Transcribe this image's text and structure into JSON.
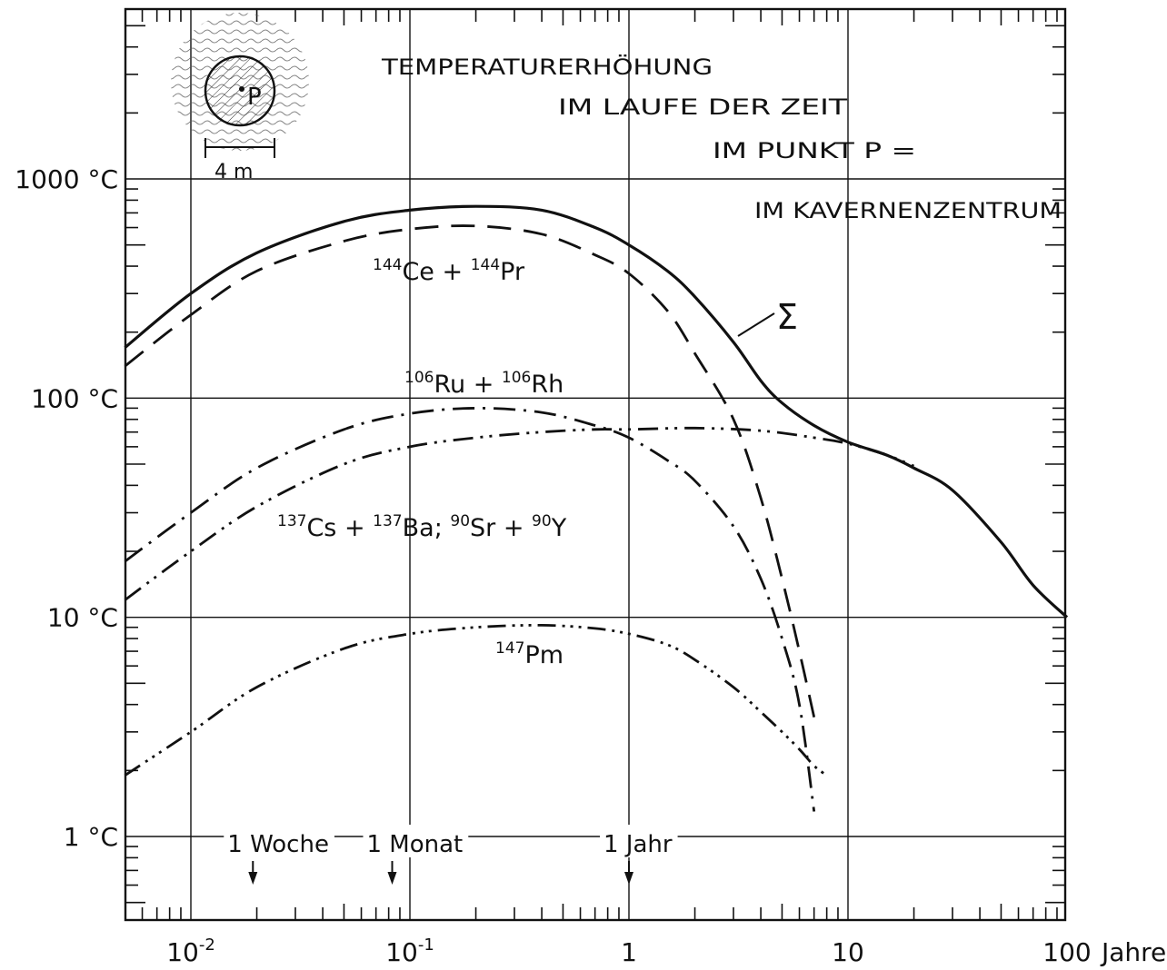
{
  "chart_data": {
    "type": "line",
    "title_lines": [
      "TEMPERATURERHÖHUNG",
      "IM LAUFE DER ZEIT",
      "IM PUNKT P =",
      "IM KAVERNENZENTRUM"
    ],
    "x_scale": "log",
    "y_scale": "log",
    "xlim": [
      0.005,
      100
    ],
    "ylim": [
      0.4,
      5000
    ],
    "x_ticks": [
      {
        "value": 0.01,
        "base": "10",
        "exp": "-2"
      },
      {
        "value": 0.1,
        "base": "10",
        "exp": "-1"
      },
      {
        "value": 1,
        "base": "1",
        "exp": ""
      },
      {
        "value": 10,
        "base": "10",
        "exp": ""
      },
      {
        "value": 100,
        "base": "100",
        "exp": ""
      }
    ],
    "x_unit": "Jahre",
    "y_ticks": [
      {
        "value": 1,
        "label": "1 °C"
      },
      {
        "value": 10,
        "label": "10 °C"
      },
      {
        "value": 100,
        "label": "100 °C"
      },
      {
        "value": 1000,
        "label": "1000 °C"
      }
    ],
    "markers": [
      {
        "x": 0.0192,
        "label": "1 Woche"
      },
      {
        "x": 0.083,
        "label": "1 Monat"
      },
      {
        "x": 1,
        "label": "1 Jahr"
      }
    ],
    "inset": {
      "point_label": "P",
      "dimension_label": "4 m"
    },
    "sum_label": "Σ",
    "series": [
      {
        "key": "sum",
        "style": "solid",
        "points": [
          [
            0.005,
            170
          ],
          [
            0.01,
            300
          ],
          [
            0.02,
            460
          ],
          [
            0.05,
            640
          ],
          [
            0.1,
            720
          ],
          [
            0.2,
            750
          ],
          [
            0.4,
            720
          ],
          [
            0.7,
            600
          ],
          [
            1,
            500
          ],
          [
            1.5,
            380
          ],
          [
            2,
            290
          ],
          [
            3,
            180
          ],
          [
            4,
            120
          ],
          [
            5,
            95
          ],
          [
            7,
            75
          ],
          [
            10,
            63
          ],
          [
            15,
            55
          ],
          [
            20,
            48
          ],
          [
            30,
            38
          ],
          [
            50,
            22
          ],
          [
            70,
            14
          ],
          [
            100,
            10
          ]
        ]
      },
      {
        "key": "ce_pr",
        "style": "dashed",
        "points": [
          [
            0.005,
            140
          ],
          [
            0.01,
            240
          ],
          [
            0.02,
            380
          ],
          [
            0.05,
            520
          ],
          [
            0.1,
            590
          ],
          [
            0.2,
            610
          ],
          [
            0.4,
            560
          ],
          [
            0.7,
            450
          ],
          [
            1,
            370
          ],
          [
            1.5,
            250
          ],
          [
            2,
            160
          ],
          [
            3,
            80
          ],
          [
            4,
            35
          ],
          [
            5,
            15
          ],
          [
            6,
            7
          ],
          [
            7,
            3.5
          ]
        ]
      },
      {
        "key": "ru_rh",
        "style": "dashdot",
        "points": [
          [
            0.005,
            18
          ],
          [
            0.01,
            30
          ],
          [
            0.02,
            48
          ],
          [
            0.05,
            72
          ],
          [
            0.1,
            85
          ],
          [
            0.2,
            90
          ],
          [
            0.4,
            86
          ],
          [
            0.7,
            75
          ],
          [
            1,
            66
          ],
          [
            1.5,
            52
          ],
          [
            2,
            42
          ],
          [
            3,
            26
          ],
          [
            4,
            15
          ],
          [
            5,
            8
          ],
          [
            6,
            4
          ],
          [
            7,
            1.3
          ]
        ]
      },
      {
        "key": "cs_ba_sr_y",
        "style": "dashdotdot",
        "points": [
          [
            0.005,
            12
          ],
          [
            0.01,
            20
          ],
          [
            0.02,
            32
          ],
          [
            0.05,
            50
          ],
          [
            0.1,
            60
          ],
          [
            0.2,
            66
          ],
          [
            0.4,
            70
          ],
          [
            0.7,
            72
          ],
          [
            1,
            72
          ],
          [
            2,
            73
          ],
          [
            4,
            71
          ],
          [
            7,
            66
          ],
          [
            10,
            62
          ],
          [
            15,
            55
          ],
          [
            20,
            49
          ]
        ]
      },
      {
        "key": "pm",
        "style": "dashdotdotdot",
        "points": [
          [
            0.005,
            1.9
          ],
          [
            0.01,
            3
          ],
          [
            0.02,
            4.8
          ],
          [
            0.05,
            7.2
          ],
          [
            0.1,
            8.4
          ],
          [
            0.2,
            9
          ],
          [
            0.4,
            9.2
          ],
          [
            0.7,
            8.9
          ],
          [
            1,
            8.4
          ],
          [
            1.5,
            7.5
          ],
          [
            2,
            6.4
          ],
          [
            3,
            4.8
          ],
          [
            4,
            3.7
          ],
          [
            5,
            3
          ],
          [
            6,
            2.5
          ],
          [
            7,
            2.1
          ],
          [
            8,
            1.9
          ]
        ]
      }
    ],
    "series_labels": [
      {
        "key": "ce_pr",
        "parts": [
          [
            "144",
            "sup"
          ],
          [
            "Ce + ",
            ""
          ],
          [
            "144",
            "sup"
          ],
          [
            "Pr",
            ""
          ]
        ]
      },
      {
        "key": "ru_rh",
        "parts": [
          [
            "106",
            "sup"
          ],
          [
            "Ru + ",
            ""
          ],
          [
            "106",
            "sup"
          ],
          [
            "Rh",
            ""
          ]
        ]
      },
      {
        "key": "cs_ba_sr_y",
        "parts": [
          [
            "137",
            "sup"
          ],
          [
            "Cs + ",
            ""
          ],
          [
            "137",
            "sup"
          ],
          [
            "Ba; ",
            ""
          ],
          [
            "90",
            "sup"
          ],
          [
            "Sr + ",
            ""
          ],
          [
            "90",
            "sup"
          ],
          [
            "Y",
            ""
          ]
        ]
      },
      {
        "key": "pm",
        "parts": [
          [
            "147",
            "sup"
          ],
          [
            "Pm",
            ""
          ]
        ]
      }
    ],
    "grid": true
  }
}
